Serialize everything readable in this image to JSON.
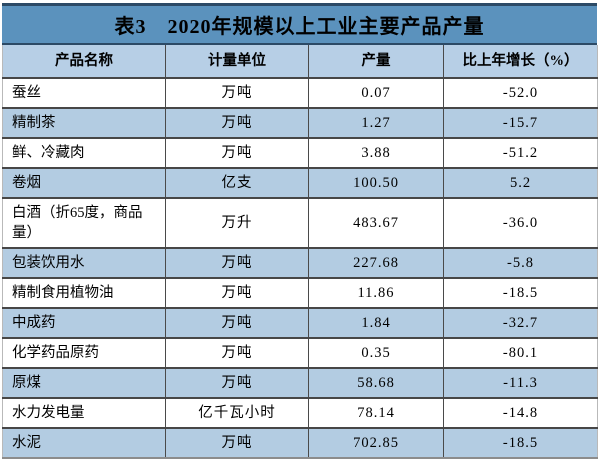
{
  "table": {
    "title": "表3　2020年规模以上工业主要产品产量",
    "columns": [
      "产品名称",
      "计量单位",
      "产量",
      "比上年增长（%）"
    ],
    "rows": [
      {
        "name": "蚕丝",
        "unit": "万吨",
        "output": "0.07",
        "growth": "-52.0"
      },
      {
        "name": "精制茶",
        "unit": "万吨",
        "output": "1.27",
        "growth": "-15.7"
      },
      {
        "name": "鲜、冷藏肉",
        "unit": "万吨",
        "output": "3.88",
        "growth": "-51.2"
      },
      {
        "name": "卷烟",
        "unit": "亿支",
        "output": "100.50",
        "growth": "5.2"
      },
      {
        "name": "白酒（折65度，商品量）",
        "unit": "万升",
        "output": "483.67",
        "growth": "-36.0"
      },
      {
        "name": "包装饮用水",
        "unit": "万吨",
        "output": "227.68",
        "growth": "-5.8"
      },
      {
        "name": "精制食用植物油",
        "unit": "万吨",
        "output": "11.86",
        "growth": "-18.5"
      },
      {
        "name": "中成药",
        "unit": "万吨",
        "output": "1.84",
        "growth": "-32.7"
      },
      {
        "name": "化学药品原药",
        "unit": "万吨",
        "output": "0.35",
        "growth": "-80.1"
      },
      {
        "name": "原煤",
        "unit": "万吨",
        "output": "58.68",
        "growth": "-11.3"
      },
      {
        "name": "水力发电量",
        "unit": "亿千瓦小时",
        "output": "78.14",
        "growth": "-14.8"
      },
      {
        "name": "水泥",
        "unit": "万吨",
        "output": "702.85",
        "growth": "-18.5"
      }
    ]
  },
  "colors": {
    "title_bar_background": "#5b92bd",
    "title_bar_border": "#2c4a66",
    "header_row_background": "#b7cfe6",
    "stripe_row_background": "#b3cce2",
    "row_divider": "#474747",
    "bottom_border": "#8c8c8c",
    "text": "#000000"
  }
}
